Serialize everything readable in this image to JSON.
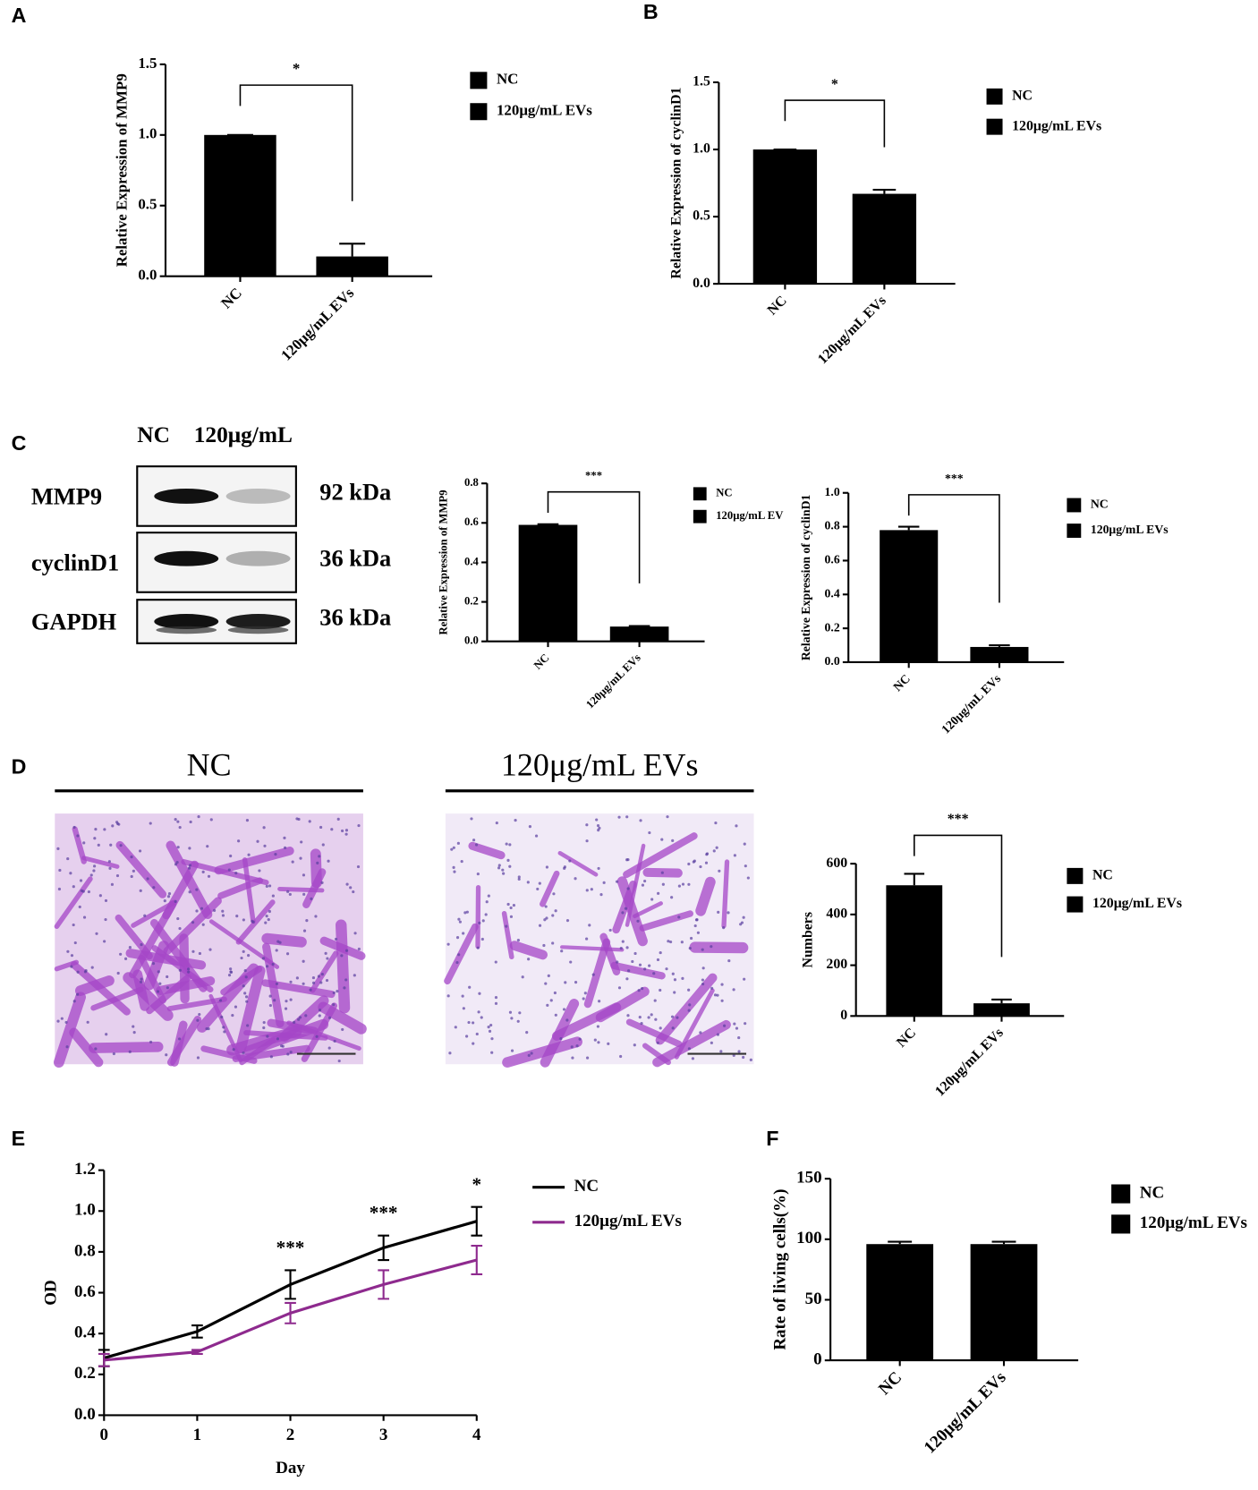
{
  "chart_data": [
    {
      "type": "bar",
      "panel": "A",
      "ylabel": "Relative Expression of  MMP9",
      "categories": [
        "NC",
        "120μg/mL EVs"
      ],
      "values": [
        1.0,
        0.14
      ],
      "errors": [
        0,
        0.09
      ],
      "color": "#000000",
      "legend": [
        "NC",
        "120μg/mL EVs"
      ],
      "significance": "*",
      "ylim": [
        0,
        1.5
      ],
      "yticks": [
        {
          "value": 0,
          "label": "0.0"
        },
        0.5,
        {
          "value": 1,
          "label": "1.0"
        },
        1.5
      ]
    },
    {
      "type": "bar",
      "panel": "B",
      "ylabel": "Relative Expression of  cyclinD1",
      "categories": [
        "NC",
        "120μg/mL EVs"
      ],
      "values": [
        1.0,
        0.67
      ],
      "errors": [
        0,
        0.03
      ],
      "color": "#000000",
      "legend": [
        "NC",
        "120μg/mL EVs"
      ],
      "significance": "*",
      "ylim": [
        0,
        1.5
      ],
      "yticks": [
        {
          "value": 0,
          "label": "0.0"
        },
        0.5,
        {
          "value": 1,
          "label": "1.0"
        },
        1.5
      ]
    },
    {
      "type": "bar",
      "panel": "C",
      "ylabel": "Relative Expression of  MMP9",
      "categories": [
        "NC",
        "120μg/mL EVs"
      ],
      "values": [
        0.59,
        0.075
      ],
      "errors": [
        0.003,
        0.003
      ],
      "color": "#000000",
      "legend": [
        "NC",
        "120μg/mL EV"
      ],
      "significance": "***",
      "ylim": [
        0,
        0.8
      ],
      "yticks": [
        {
          "value": 0,
          "label": "0.0"
        },
        0.2,
        0.4,
        0.6,
        0.8
      ]
    },
    {
      "type": "bar",
      "ylabel": "Relative Expression of  cyclinD1",
      "categories": [
        "NC",
        "120μg/mL EVs"
      ],
      "values": [
        0.78,
        0.09
      ],
      "errors": [
        0.02,
        0.01
      ],
      "color": "#000000",
      "legend": [
        "NC",
        "120μg/mL EVs"
      ],
      "significance": "***",
      "ylim": [
        0,
        1
      ],
      "yticks": [
        {
          "value": 0,
          "label": "0.0"
        },
        0.2,
        0.4,
        0.6,
        0.8,
        {
          "value": 1,
          "label": "1.0"
        }
      ]
    },
    {
      "type": "bar",
      "panel": "D",
      "ylabel": "Numbers",
      "categories": [
        "NC",
        "120μg/mL EVs"
      ],
      "values": [
        515,
        50
      ],
      "errors": [
        45,
        15
      ],
      "color": "#000000",
      "legend": [
        "NC",
        "120μg/mL EVs"
      ],
      "significance": "***",
      "ylim": [
        0,
        600
      ],
      "yticks": [
        0,
        200,
        400,
        600
      ]
    },
    {
      "type": "line",
      "panel": "E",
      "xlabel": "Day",
      "ylabel": "OD",
      "x": [
        0,
        1,
        2,
        3,
        4
      ],
      "series": [
        {
          "name": "NC",
          "color": "#000000",
          "values": [
            0.28,
            0.41,
            0.64,
            0.82,
            0.95
          ],
          "errors": [
            0.04,
            0.03,
            0.07,
            0.06,
            0.07
          ]
        },
        {
          "name": "120μg/mL EVs",
          "color": "#8e2a8e",
          "values": [
            0.27,
            0.31,
            0.5,
            0.64,
            0.76
          ],
          "errors": [
            0.03,
            0.01,
            0.05,
            0.07,
            0.07
          ]
        }
      ],
      "annotations": [
        {
          "x": 2,
          "text": "***"
        },
        {
          "x": 3,
          "text": "***"
        },
        {
          "x": 4,
          "text": "*"
        }
      ],
      "xlim": [
        0,
        4
      ],
      "xticks": [
        0,
        1,
        2,
        3,
        4
      ],
      "ylim": [
        0,
        1.2
      ],
      "yticks": [
        {
          "value": 0,
          "label": "0.0"
        },
        0.2,
        0.4,
        0.6,
        0.8,
        {
          "value": 1,
          "label": "1.0"
        },
        1.2
      ]
    },
    {
      "type": "bar",
      "panel": "F",
      "ylabel": "Rate of living cells(%)",
      "categories": [
        "NC",
        "120μg/mL EVs"
      ],
      "values": [
        96,
        96
      ],
      "errors": [
        2,
        2
      ],
      "color": "#000000",
      "legend": [
        "NC",
        "120μg/mL EVs"
      ],
      "ylim": [
        0,
        150
      ],
      "yticks": [
        0,
        50,
        100,
        150
      ]
    }
  ],
  "blot": {
    "lanes": [
      "NC",
      "120μg/mL"
    ],
    "rows": [
      {
        "protein": "MMP9",
        "size": "92 kDa"
      },
      {
        "protein": "cyclinD1",
        "size": "36 kDa"
      },
      {
        "protein": "GAPDH",
        "size": "36 kDa"
      }
    ]
  },
  "micrographs": [
    "NC",
    "120μg/mL EVs"
  ]
}
